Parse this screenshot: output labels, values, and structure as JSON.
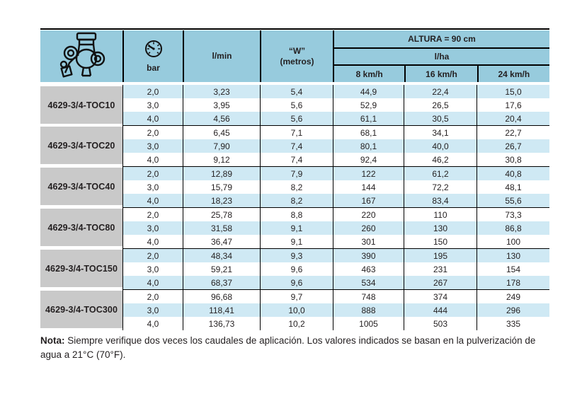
{
  "header": {
    "product_icon": "valve-illustration",
    "pressure_icon": "pressure-gauge-icon",
    "pressure_unit": "bar",
    "flow_label": "l/min",
    "width_label_line1": "“W”",
    "width_label_line2": "(metros)",
    "altura_label": "ALTURA = 90 cm",
    "lha_label": "l/ha",
    "speed_columns": [
      "8 km/h",
      "16 km/h",
      "24 km/h"
    ]
  },
  "table": {
    "column_semantics": [
      "bar",
      "l/min",
      "W (metros)",
      "l/ha @ 8 km/h",
      "l/ha @ 16 km/h",
      "l/ha @ 24 km/h"
    ],
    "groups": [
      {
        "model": "4629-3/4-TOC10",
        "rows": [
          [
            "2,0",
            "3,23",
            "5,4",
            "44,9",
            "22,4",
            "15,0"
          ],
          [
            "3,0",
            "3,95",
            "5,6",
            "52,9",
            "26,5",
            "17,6"
          ],
          [
            "4,0",
            "4,56",
            "5,6",
            "61,1",
            "30,5",
            "20,4"
          ]
        ]
      },
      {
        "model": "4629-3/4-TOC20",
        "rows": [
          [
            "2,0",
            "6,45",
            "7,1",
            "68,1",
            "34,1",
            "22,7"
          ],
          [
            "3,0",
            "7,90",
            "7,4",
            "80,1",
            "40,0",
            "26,7"
          ],
          [
            "4,0",
            "9,12",
            "7,4",
            "92,4",
            "46,2",
            "30,8"
          ]
        ]
      },
      {
        "model": "4629-3/4-TOC40",
        "rows": [
          [
            "2,0",
            "12,89",
            "7,9",
            "122",
            "61,2",
            "40,8"
          ],
          [
            "3,0",
            "15,79",
            "8,2",
            "144",
            "72,2",
            "48,1"
          ],
          [
            "4,0",
            "18,23",
            "8,2",
            "167",
            "83,4",
            "55,6"
          ]
        ]
      },
      {
        "model": "4629-3/4-TOC80",
        "rows": [
          [
            "2,0",
            "25,78",
            "8,8",
            "220",
            "110",
            "73,3"
          ],
          [
            "3,0",
            "31,58",
            "9,1",
            "260",
            "130",
            "86,8"
          ],
          [
            "4,0",
            "36,47",
            "9,1",
            "301",
            "150",
            "100"
          ]
        ]
      },
      {
        "model": "4629-3/4-TOC150",
        "rows": [
          [
            "2,0",
            "48,34",
            "9,3",
            "390",
            "195",
            "130"
          ],
          [
            "3,0",
            "59,21",
            "9,6",
            "463",
            "231",
            "154"
          ],
          [
            "4,0",
            "68,37",
            "9,6",
            "534",
            "267",
            "178"
          ]
        ]
      },
      {
        "model": "4629-3/4-TOC300",
        "rows": [
          [
            "2,0",
            "96,68",
            "9,7",
            "748",
            "374",
            "249"
          ],
          [
            "3,0",
            "118,41",
            "10,0",
            "888",
            "444",
            "296"
          ],
          [
            "4,0",
            "136,73",
            "10,2",
            "1005",
            "503",
            "335"
          ]
        ]
      }
    ]
  },
  "note": {
    "label": "Nota:",
    "text": " Siempre verifique dos veces los caudales de aplicación. Los valores indicados se basan en la pulverización de agua a 21°C (70°F)."
  },
  "colors": {
    "header_blue": "#97cbdd",
    "stripe_blue": "#cfe9f4",
    "label_gray": "#c9c9c9",
    "line_black": "#000000"
  }
}
